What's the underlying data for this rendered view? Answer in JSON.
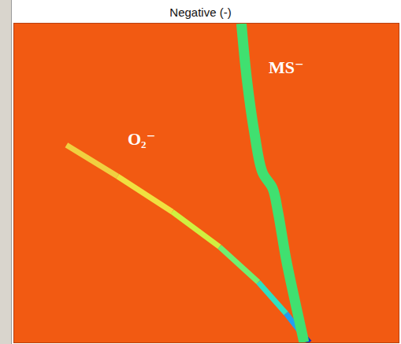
{
  "chart_data": {
    "type": "line",
    "title": "Negative (-)",
    "xlim": [
      0,
      100
    ],
    "ylim": [
      0,
      100
    ],
    "xticks": [],
    "yticks": [],
    "tick_labels": false,
    "grid": false,
    "series": [
      {
        "name": "O₂⁻",
        "color": "#30d0c0",
        "colors": [
          "#f0d040",
          "#f0e040",
          "#d0f040",
          "#70f070",
          "#30e0c0",
          "#20a0f0",
          "#1030d0"
        ],
        "x": [
          13.6,
          26.9,
          41.1,
          53.4,
          63.5,
          70.7,
          74.7,
          76.8
        ],
        "values": [
          61.9,
          52.1,
          41.0,
          30.0,
          18.9,
          9.1,
          2.9,
          0
        ]
      },
      {
        "name": "MS⁻",
        "color": "#40e070",
        "x": [
          59.1,
          60.5,
          62.5,
          64.6,
          67.2,
          68.6,
          70.7,
          73.3,
          75.4
        ],
        "values": [
          100,
          82.8,
          65.6,
          53.3,
          48.4,
          41.0,
          26.3,
          11.5,
          0
        ]
      }
    ]
  }
}
